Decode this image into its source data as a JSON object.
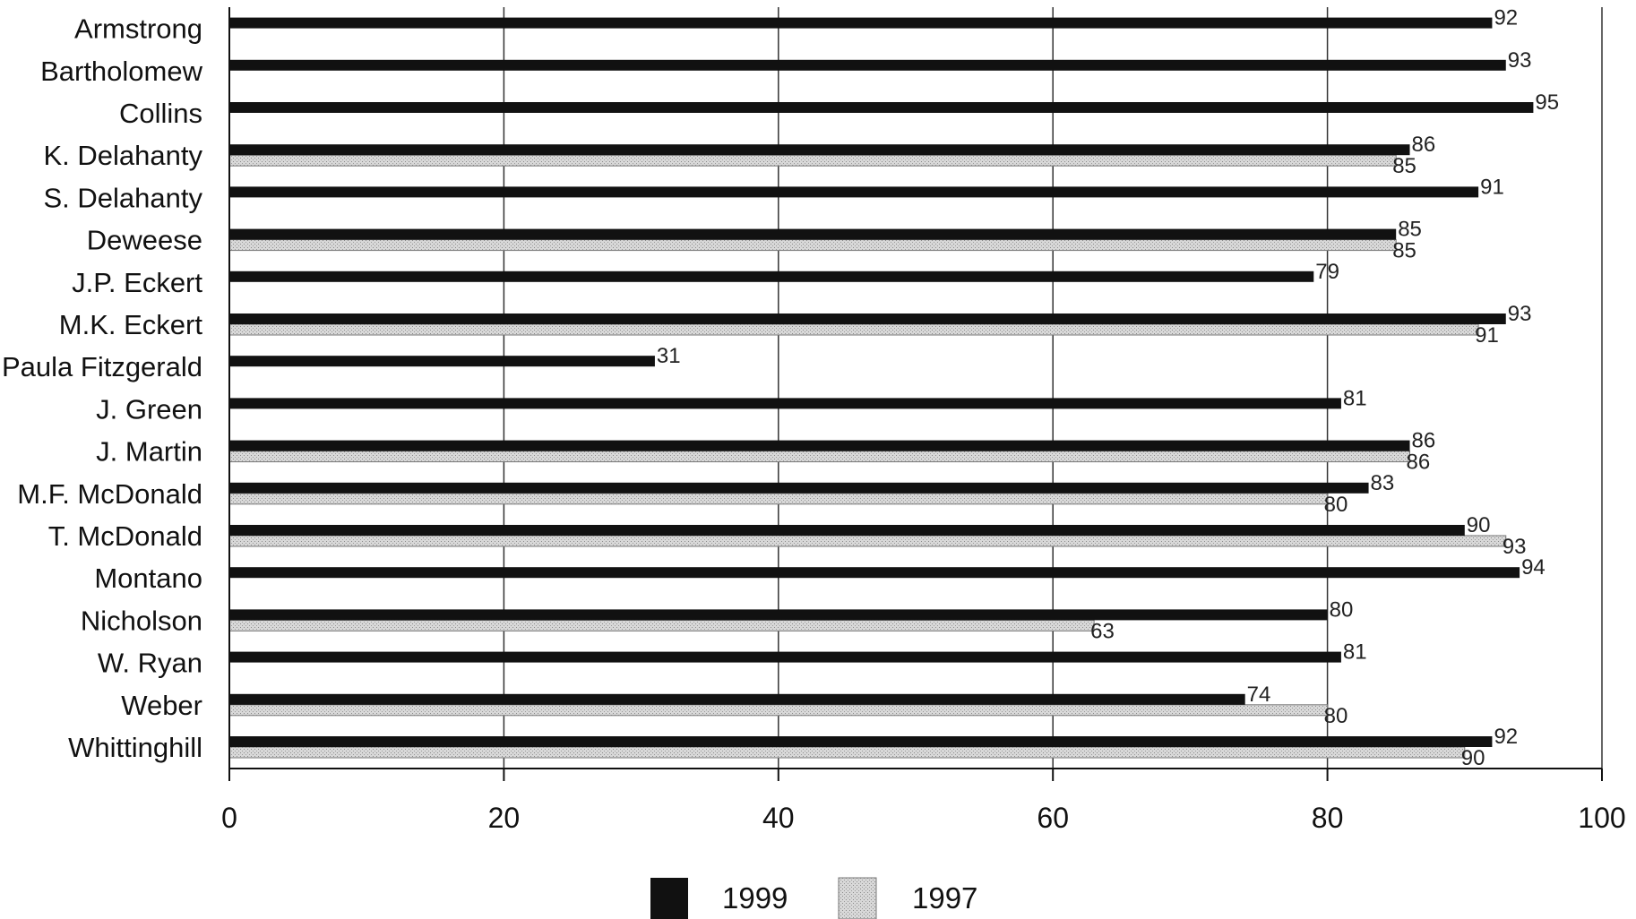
{
  "chart_data": {
    "type": "bar",
    "orientation": "horizontal",
    "categories": [
      "Armstrong",
      "Bartholomew",
      "Collins",
      "K. Delahanty",
      "S. Delahanty",
      "Deweese",
      "J.P. Eckert",
      "M.K. Eckert",
      "Paula Fitzgerald",
      "J. Green",
      "J. Martin",
      "M.F. McDonald",
      "T. McDonald",
      "Montano",
      "Nicholson",
      "W. Ryan",
      "Weber",
      "Whittinghill"
    ],
    "series": [
      {
        "name": "1999",
        "color": "#111111",
        "values": [
          92,
          93,
          95,
          86,
          91,
          85,
          79,
          93,
          31,
          81,
          86,
          83,
          90,
          94,
          80,
          81,
          74,
          92
        ]
      },
      {
        "name": "1997",
        "color": "#cfcfcf",
        "values": [
          null,
          null,
          null,
          85,
          null,
          85,
          null,
          91,
          null,
          null,
          86,
          80,
          93,
          null,
          63,
          null,
          80,
          90
        ]
      }
    ],
    "xlim": [
      0,
      100
    ],
    "xticks": [
      0,
      20,
      40,
      60,
      80,
      100
    ],
    "xtick_labels": [
      "0",
      "20",
      "40",
      "60",
      "80",
      "100"
    ],
    "grid": "vertical",
    "legend_position": "bottom-center",
    "title": "",
    "xlabel": "",
    "ylabel": ""
  }
}
